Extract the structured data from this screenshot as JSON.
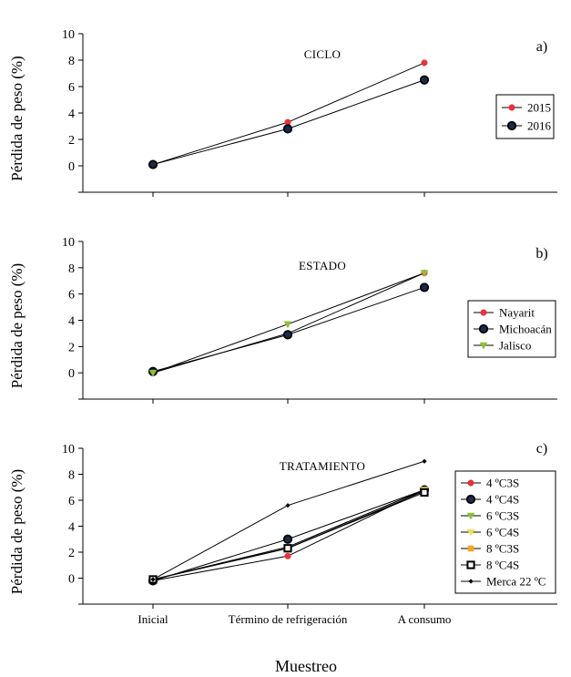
{
  "chart_data": [
    {
      "type": "line",
      "title": "CICLO",
      "panel_letter": "a)",
      "ylabel": "Pérdida de peso (%)",
      "ylim": [
        -2,
        10
      ],
      "yticks": [
        0,
        2,
        4,
        6,
        8,
        10
      ],
      "categories": [
        "Inicial",
        "Término de refrigeración",
        "A consumo"
      ],
      "legend_position": "right",
      "series": [
        {
          "name": "2015",
          "values": [
            0.1,
            3.3,
            7.8
          ],
          "marker": "circle",
          "color": "#e8323c",
          "markerSize": "small"
        },
        {
          "name": "2016",
          "values": [
            0.1,
            2.8,
            6.5
          ],
          "marker": "circle",
          "color": "#1a2b4a",
          "markerSize": "large"
        }
      ]
    },
    {
      "type": "line",
      "title": "ESTADO",
      "panel_letter": "b)",
      "ylabel": "Pérdida de peso (%)",
      "ylim": [
        -2,
        10
      ],
      "yticks": [
        0,
        2,
        4,
        6,
        8,
        10
      ],
      "categories": [
        "Inicial",
        "Término de refrigeración",
        "A consumo"
      ],
      "legend_position": "right",
      "series": [
        {
          "name": "Nayarit",
          "values": [
            0.0,
            3.0,
            7.6
          ],
          "marker": "circle",
          "color": "#e8323c",
          "markerSize": "small"
        },
        {
          "name": "Michoacán",
          "values": [
            0.1,
            2.9,
            6.5
          ],
          "marker": "circle",
          "color": "#1a2b4a",
          "markerSize": "large"
        },
        {
          "name": "Jalisco",
          "values": [
            0.0,
            3.7,
            7.6
          ],
          "marker": "triangle",
          "color": "#8bbf3a",
          "markerSize": "small"
        }
      ]
    },
    {
      "type": "line",
      "title": "TRATAMIENTO",
      "panel_letter": "c)",
      "ylabel": "Pérdida de peso (%)",
      "ylim": [
        -2,
        10
      ],
      "yticks": [
        0,
        2,
        4,
        6,
        8,
        10
      ],
      "categories": [
        "Inicial",
        "Término de refrigeración",
        "A consumo"
      ],
      "xlabel": "Muestreo",
      "legend_position": "right",
      "series": [
        {
          "name": "4 ºC3S",
          "values": [
            -0.2,
            1.7,
            6.8
          ],
          "marker": "circle",
          "color": "#e8323c",
          "markerSize": "small"
        },
        {
          "name": "4 ºC4S",
          "values": [
            -0.2,
            3.0,
            6.8
          ],
          "marker": "circle",
          "color": "#1a2b4a",
          "markerSize": "large"
        },
        {
          "name": "6 ºC3S",
          "values": [
            -0.1,
            2.4,
            6.8
          ],
          "marker": "triangle",
          "color": "#8bbf3a",
          "markerSize": "small"
        },
        {
          "name": "6 ºC4S",
          "values": [
            -0.1,
            2.4,
            6.8
          ],
          "marker": "triangle",
          "color": "#f0e060",
          "markerSize": "small"
        },
        {
          "name": "8 ºC3S",
          "values": [
            -0.1,
            2.3,
            6.7
          ],
          "marker": "square",
          "color": "#f5a623",
          "markerSize": "small"
        },
        {
          "name": "8 ºC4S",
          "values": [
            -0.1,
            2.3,
            6.6
          ],
          "marker": "square-open",
          "color": "#000000",
          "markerSize": "large"
        },
        {
          "name": "Merca 22 ºC",
          "values": [
            -0.1,
            5.6,
            9.0
          ],
          "marker": "diamond",
          "color": "#000000",
          "markerSize": "small"
        }
      ]
    }
  ]
}
